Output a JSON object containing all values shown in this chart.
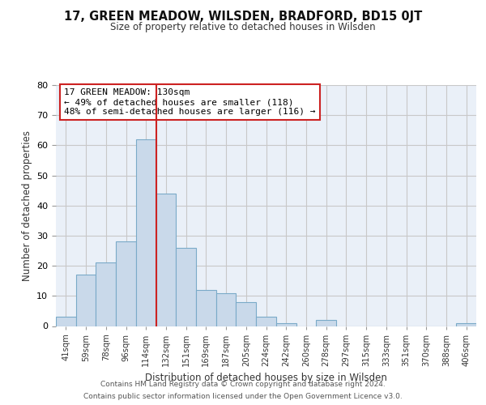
{
  "title": "17, GREEN MEADOW, WILSDEN, BRADFORD, BD15 0JT",
  "subtitle": "Size of property relative to detached houses in Wilsden",
  "xlabel": "Distribution of detached houses by size in Wilsden",
  "ylabel": "Number of detached properties",
  "bar_labels": [
    "41sqm",
    "59sqm",
    "78sqm",
    "96sqm",
    "114sqm",
    "132sqm",
    "151sqm",
    "169sqm",
    "187sqm",
    "205sqm",
    "224sqm",
    "242sqm",
    "260sqm",
    "278sqm",
    "297sqm",
    "315sqm",
    "333sqm",
    "351sqm",
    "370sqm",
    "388sqm",
    "406sqm"
  ],
  "bar_values": [
    3,
    17,
    21,
    28,
    62,
    44,
    26,
    12,
    11,
    8,
    3,
    1,
    0,
    2,
    0,
    0,
    0,
    0,
    0,
    0,
    1
  ],
  "bar_color": "#c9d9ea",
  "bar_edge_color": "#7aaac8",
  "vline_x": 5.0,
  "vline_color": "#cc2222",
  "annotation_text": "17 GREEN MEADOW: 130sqm\n← 49% of detached houses are smaller (118)\n48% of semi-detached houses are larger (116) →",
  "annotation_box_color": "white",
  "annotation_box_edge_color": "#cc2222",
  "ylim": [
    0,
    80
  ],
  "yticks": [
    0,
    10,
    20,
    30,
    40,
    50,
    60,
    70,
    80
  ],
  "grid_color": "#c8c8c8",
  "bg_color": "#eaf0f8",
  "footer1": "Contains HM Land Registry data © Crown copyright and database right 2024.",
  "footer2": "Contains public sector information licensed under the Open Government Licence v3.0."
}
